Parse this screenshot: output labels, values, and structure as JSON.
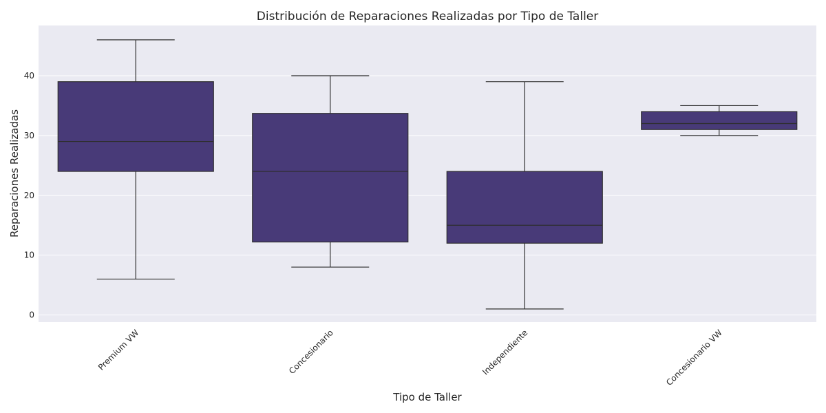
{
  "chart_data": {
    "type": "boxplot",
    "title": "Distribución de Reparaciones Realizadas por Tipo de Taller",
    "xlabel": "Tipo de Taller",
    "ylabel": "Reparaciones Realizadas",
    "ylim": [
      -1.2,
      48.4
    ],
    "yticks": [
      0,
      10,
      20,
      30,
      40
    ],
    "grid": true,
    "categories": [
      "Premium VW",
      "Concesionario",
      "Independiente",
      "Concesionario VW"
    ],
    "boxes": [
      {
        "category": "Premium VW",
        "min": 6,
        "q1": 24,
        "median": 29,
        "q3": 39,
        "max": 46
      },
      {
        "category": "Concesionario",
        "min": 8,
        "q1": 12.2,
        "median": 24,
        "q3": 33.7,
        "max": 40
      },
      {
        "category": "Independiente",
        "min": 1,
        "q1": 12,
        "median": 15,
        "q3": 24,
        "max": 39
      },
      {
        "category": "Concesionario VW",
        "min": 30,
        "q1": 31,
        "median": 32,
        "q3": 34,
        "max": 35
      }
    ],
    "colors": {
      "box": "#483A78",
      "line": "#2e2e2e",
      "background": "#EAEAF2",
      "grid": "#ffffff"
    }
  }
}
